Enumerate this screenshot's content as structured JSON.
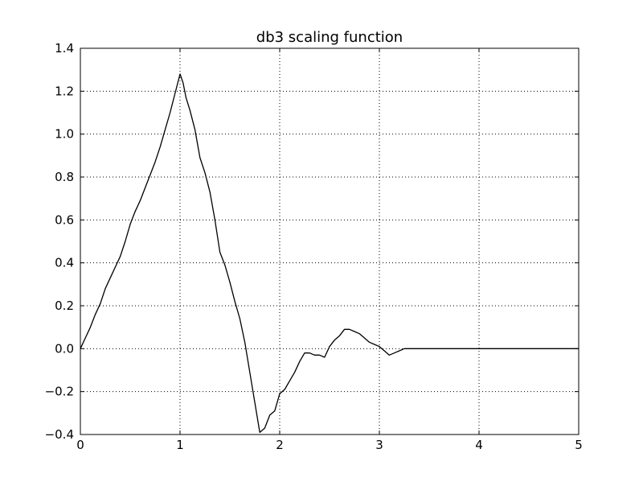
{
  "chart_data": {
    "type": "line",
    "title": "db3 scaling function",
    "xlabel": "",
    "ylabel": "",
    "xlim": [
      0,
      5
    ],
    "ylim": [
      -0.4,
      1.4
    ],
    "xticks": [
      0,
      1,
      2,
      3,
      4,
      5
    ],
    "xtick_labels": [
      "0",
      "1",
      "2",
      "3",
      "4",
      "5"
    ],
    "yticks": [
      -0.4,
      -0.2,
      0.0,
      0.2,
      0.4,
      0.6,
      0.8,
      1.0,
      1.2,
      1.4
    ],
    "ytick_labels": [
      "−0.4",
      "−0.2",
      "0.0",
      "0.2",
      "0.4",
      "0.6",
      "0.8",
      "1.0",
      "1.2",
      "1.4"
    ],
    "grid": true,
    "colors": {
      "line": "#000000",
      "grid": "#000000",
      "frame": "#000000",
      "background": "#ffffff"
    },
    "series": [
      {
        "x": [
          0,
          0.05,
          0.1,
          0.15,
          0.2,
          0.25,
          0.3,
          0.35,
          0.4,
          0.45,
          0.5,
          0.55,
          0.6,
          0.65,
          0.7,
          0.75,
          0.8,
          0.85,
          0.9,
          0.95,
          1.0,
          1.03,
          1.06,
          1.1,
          1.15,
          1.2,
          1.25,
          1.3,
          1.35,
          1.4,
          1.45,
          1.5,
          1.55,
          1.6,
          1.65,
          1.7,
          1.75,
          1.8,
          1.85,
          1.9,
          1.95,
          2.0,
          2.05,
          2.1,
          2.15,
          2.2,
          2.25,
          2.3,
          2.35,
          2.4,
          2.45,
          2.5,
          2.55,
          2.6,
          2.65,
          2.7,
          2.75,
          2.8,
          2.85,
          2.9,
          2.95,
          3.0,
          3.05,
          3.1,
          3.15,
          3.2,
          3.25,
          3.3,
          3.35,
          3.4,
          3.45,
          3.5,
          3.55,
          3.6,
          3.65,
          3.7,
          3.75,
          3.8,
          3.85,
          3.9,
          3.95,
          4.0,
          4.05,
          4.1,
          4.15,
          4.2,
          4.25,
          4.3,
          4.4,
          4.5,
          4.6,
          4.7,
          4.8,
          4.9,
          5.0
        ],
        "y": [
          0.0,
          0.05,
          0.1,
          0.16,
          0.21,
          0.28,
          0.33,
          0.38,
          0.43,
          0.5,
          0.58,
          0.64,
          0.69,
          0.75,
          0.81,
          0.87,
          0.94,
          1.02,
          1.1,
          1.19,
          1.28,
          1.24,
          1.17,
          1.11,
          1.02,
          0.89,
          0.82,
          0.73,
          0.6,
          0.45,
          0.39,
          0.31,
          0.22,
          0.14,
          0.03,
          -0.11,
          -0.25,
          -0.39,
          -0.37,
          -0.31,
          -0.29,
          -0.21,
          -0.19,
          -0.15,
          -0.11,
          -0.06,
          -0.02,
          -0.02,
          -0.03,
          -0.03,
          -0.04,
          0.01,
          0.04,
          0.06,
          0.09,
          0.09,
          0.08,
          0.07,
          0.05,
          0.03,
          0.02,
          0.01,
          -0.01,
          -0.03,
          -0.02,
          -0.01,
          0.0,
          0.0,
          0.0,
          0.0,
          0.0,
          0.0,
          0.0,
          0.0,
          0.0,
          0.0,
          0.0,
          0.0,
          0.0,
          0.0,
          0.0,
          0.0,
          0.0,
          0.0,
          0.0,
          0.0,
          0.0,
          0.0,
          0.0,
          0.0,
          0.0,
          0.0,
          0.0,
          0.0,
          0.0
        ]
      }
    ]
  }
}
